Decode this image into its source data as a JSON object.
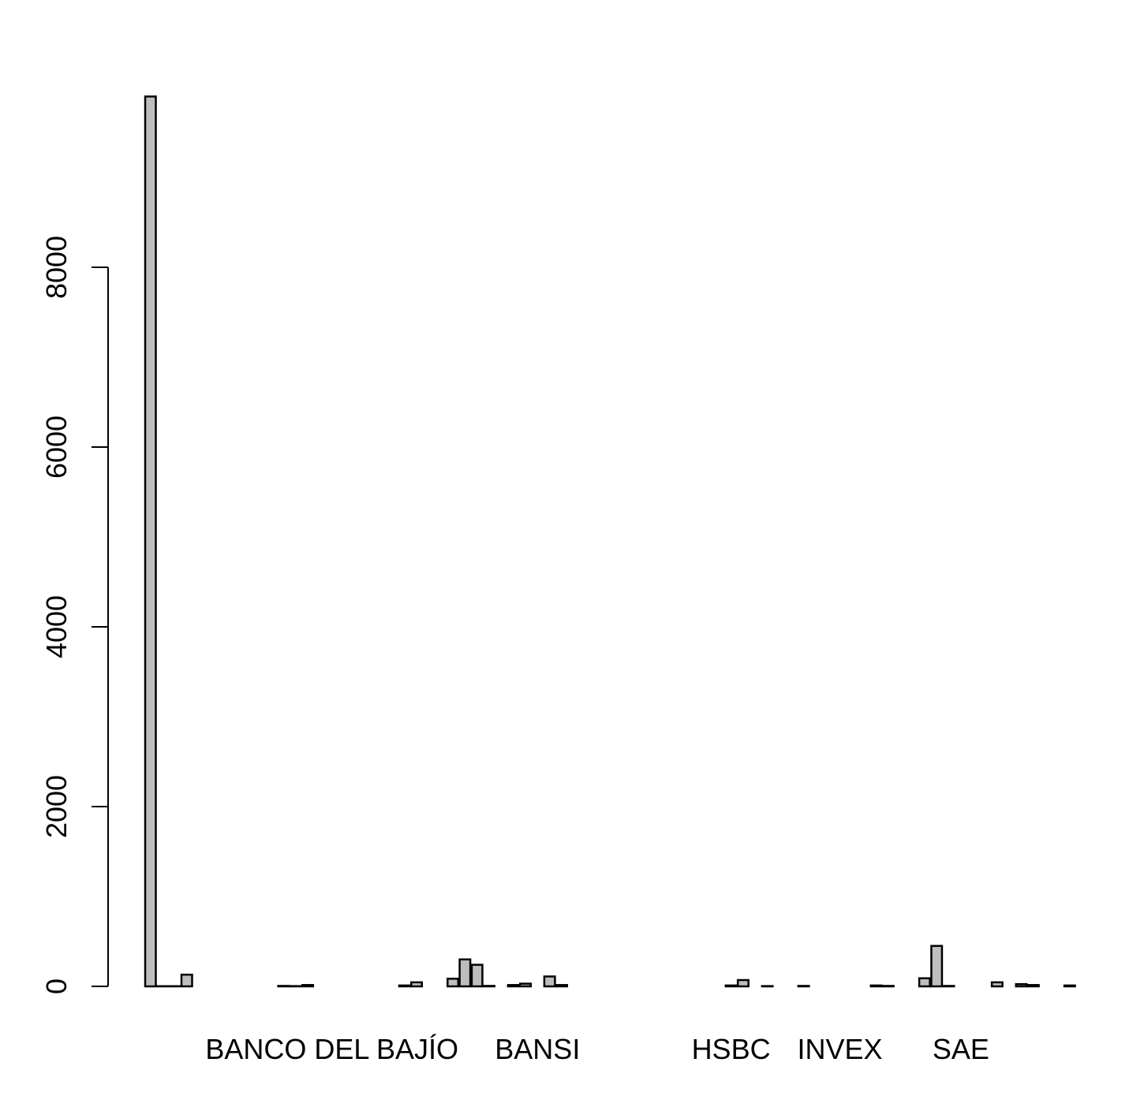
{
  "chart_data": {
    "type": "bar",
    "title": "",
    "xlabel": "",
    "ylabel": "",
    "ylim": [
      0,
      9900
    ],
    "yticks": [
      0,
      2000,
      4000,
      6000,
      8000
    ],
    "bar_fill": "#bebebe",
    "bar_stroke": "#000000",
    "shown_category_labels": [
      {
        "text": "BANCO DEL BAJÍO",
        "index": 15
      },
      {
        "text": "BANSI",
        "index": 32
      },
      {
        "text": "HSBC",
        "index": 48
      },
      {
        "text": "INVEX",
        "index": 57
      },
      {
        "text": "SAE",
        "index": 67
      }
    ],
    "values": [
      9900,
      2,
      2,
      130,
      0,
      0,
      0,
      0,
      0,
      0,
      0,
      5,
      3,
      15,
      0,
      0,
      0,
      0,
      0,
      0,
      0,
      10,
      45,
      0,
      0,
      85,
      300,
      240,
      5,
      0,
      15,
      30,
      0,
      110,
      15,
      0,
      0,
      0,
      0,
      0,
      0,
      0,
      0,
      0,
      0,
      0,
      0,
      0,
      10,
      70,
      0,
      3,
      0,
      0,
      5,
      0,
      0,
      0,
      0,
      0,
      10,
      5,
      0,
      0,
      90,
      450,
      5,
      0,
      0,
      0,
      45,
      0,
      25,
      15,
      0,
      0,
      10,
      0,
      0,
      0
    ]
  }
}
